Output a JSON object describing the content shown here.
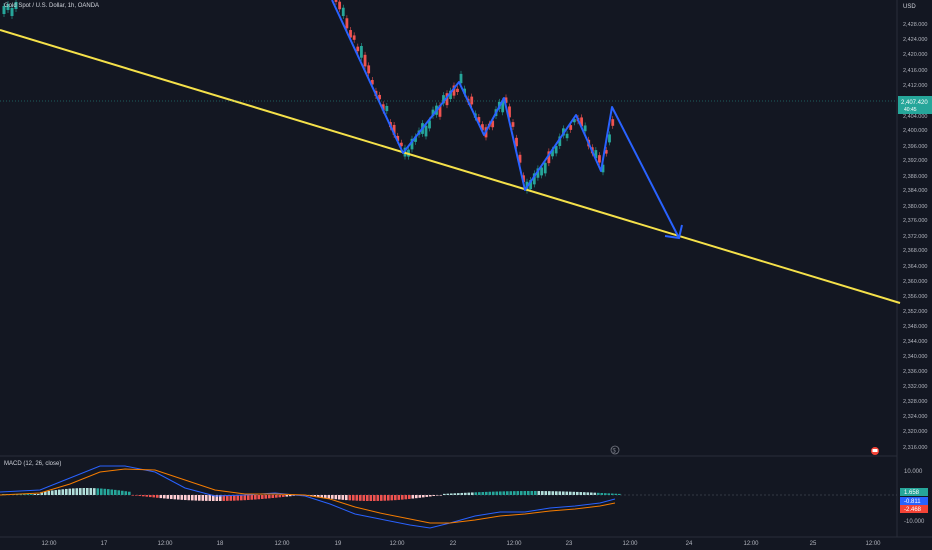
{
  "header": {
    "title": "Gold Spot / U.S. Dollar, 1h, OANDA"
  },
  "currency": "USD",
  "macd": {
    "label": "MACD (12, 26, close)",
    "scale_labels": [
      "10.000",
      "-10.000"
    ],
    "badges": [
      {
        "text": "1.658",
        "color": "#26a69a"
      },
      {
        "text": "-0.811",
        "color": "#2962ff"
      },
      {
        "text": "-2.468",
        "color": "#f44336"
      }
    ]
  },
  "price_axis": {
    "labels": [
      "2,428.000",
      "2,424.000",
      "2,420.000",
      "2,416.000",
      "2,412.000",
      "2,404.000",
      "2,400.000",
      "2,396.000",
      "2,392.000",
      "2,388.000",
      "2,384.000",
      "2,380.000",
      "2,376.000",
      "2,372.000",
      "2,368.000",
      "2,364.000",
      "2,360.000",
      "2,356.000",
      "2,352.000",
      "2,348.000",
      "2,344.000",
      "2,340.000",
      "2,336.000",
      "2,332.000",
      "2,328.000",
      "2,324.000",
      "2,320.000",
      "2,316.000"
    ],
    "current_price": "2,407.420",
    "countdown": "40:45"
  },
  "time_axis": {
    "labels": [
      "12:00",
      "17",
      "12:00",
      "18",
      "12:00",
      "19",
      "12:00",
      "22",
      "12:00",
      "23",
      "12:00",
      "24",
      "12:00",
      "25",
      "12:00"
    ]
  },
  "colors": {
    "background": "#131722",
    "bull": "#26a69a",
    "bear": "#ef5350",
    "trendline": "#f5e14a",
    "pattern": "#2962ff"
  },
  "icons": [
    "alert-bell-icon",
    "flag-icon"
  ]
}
